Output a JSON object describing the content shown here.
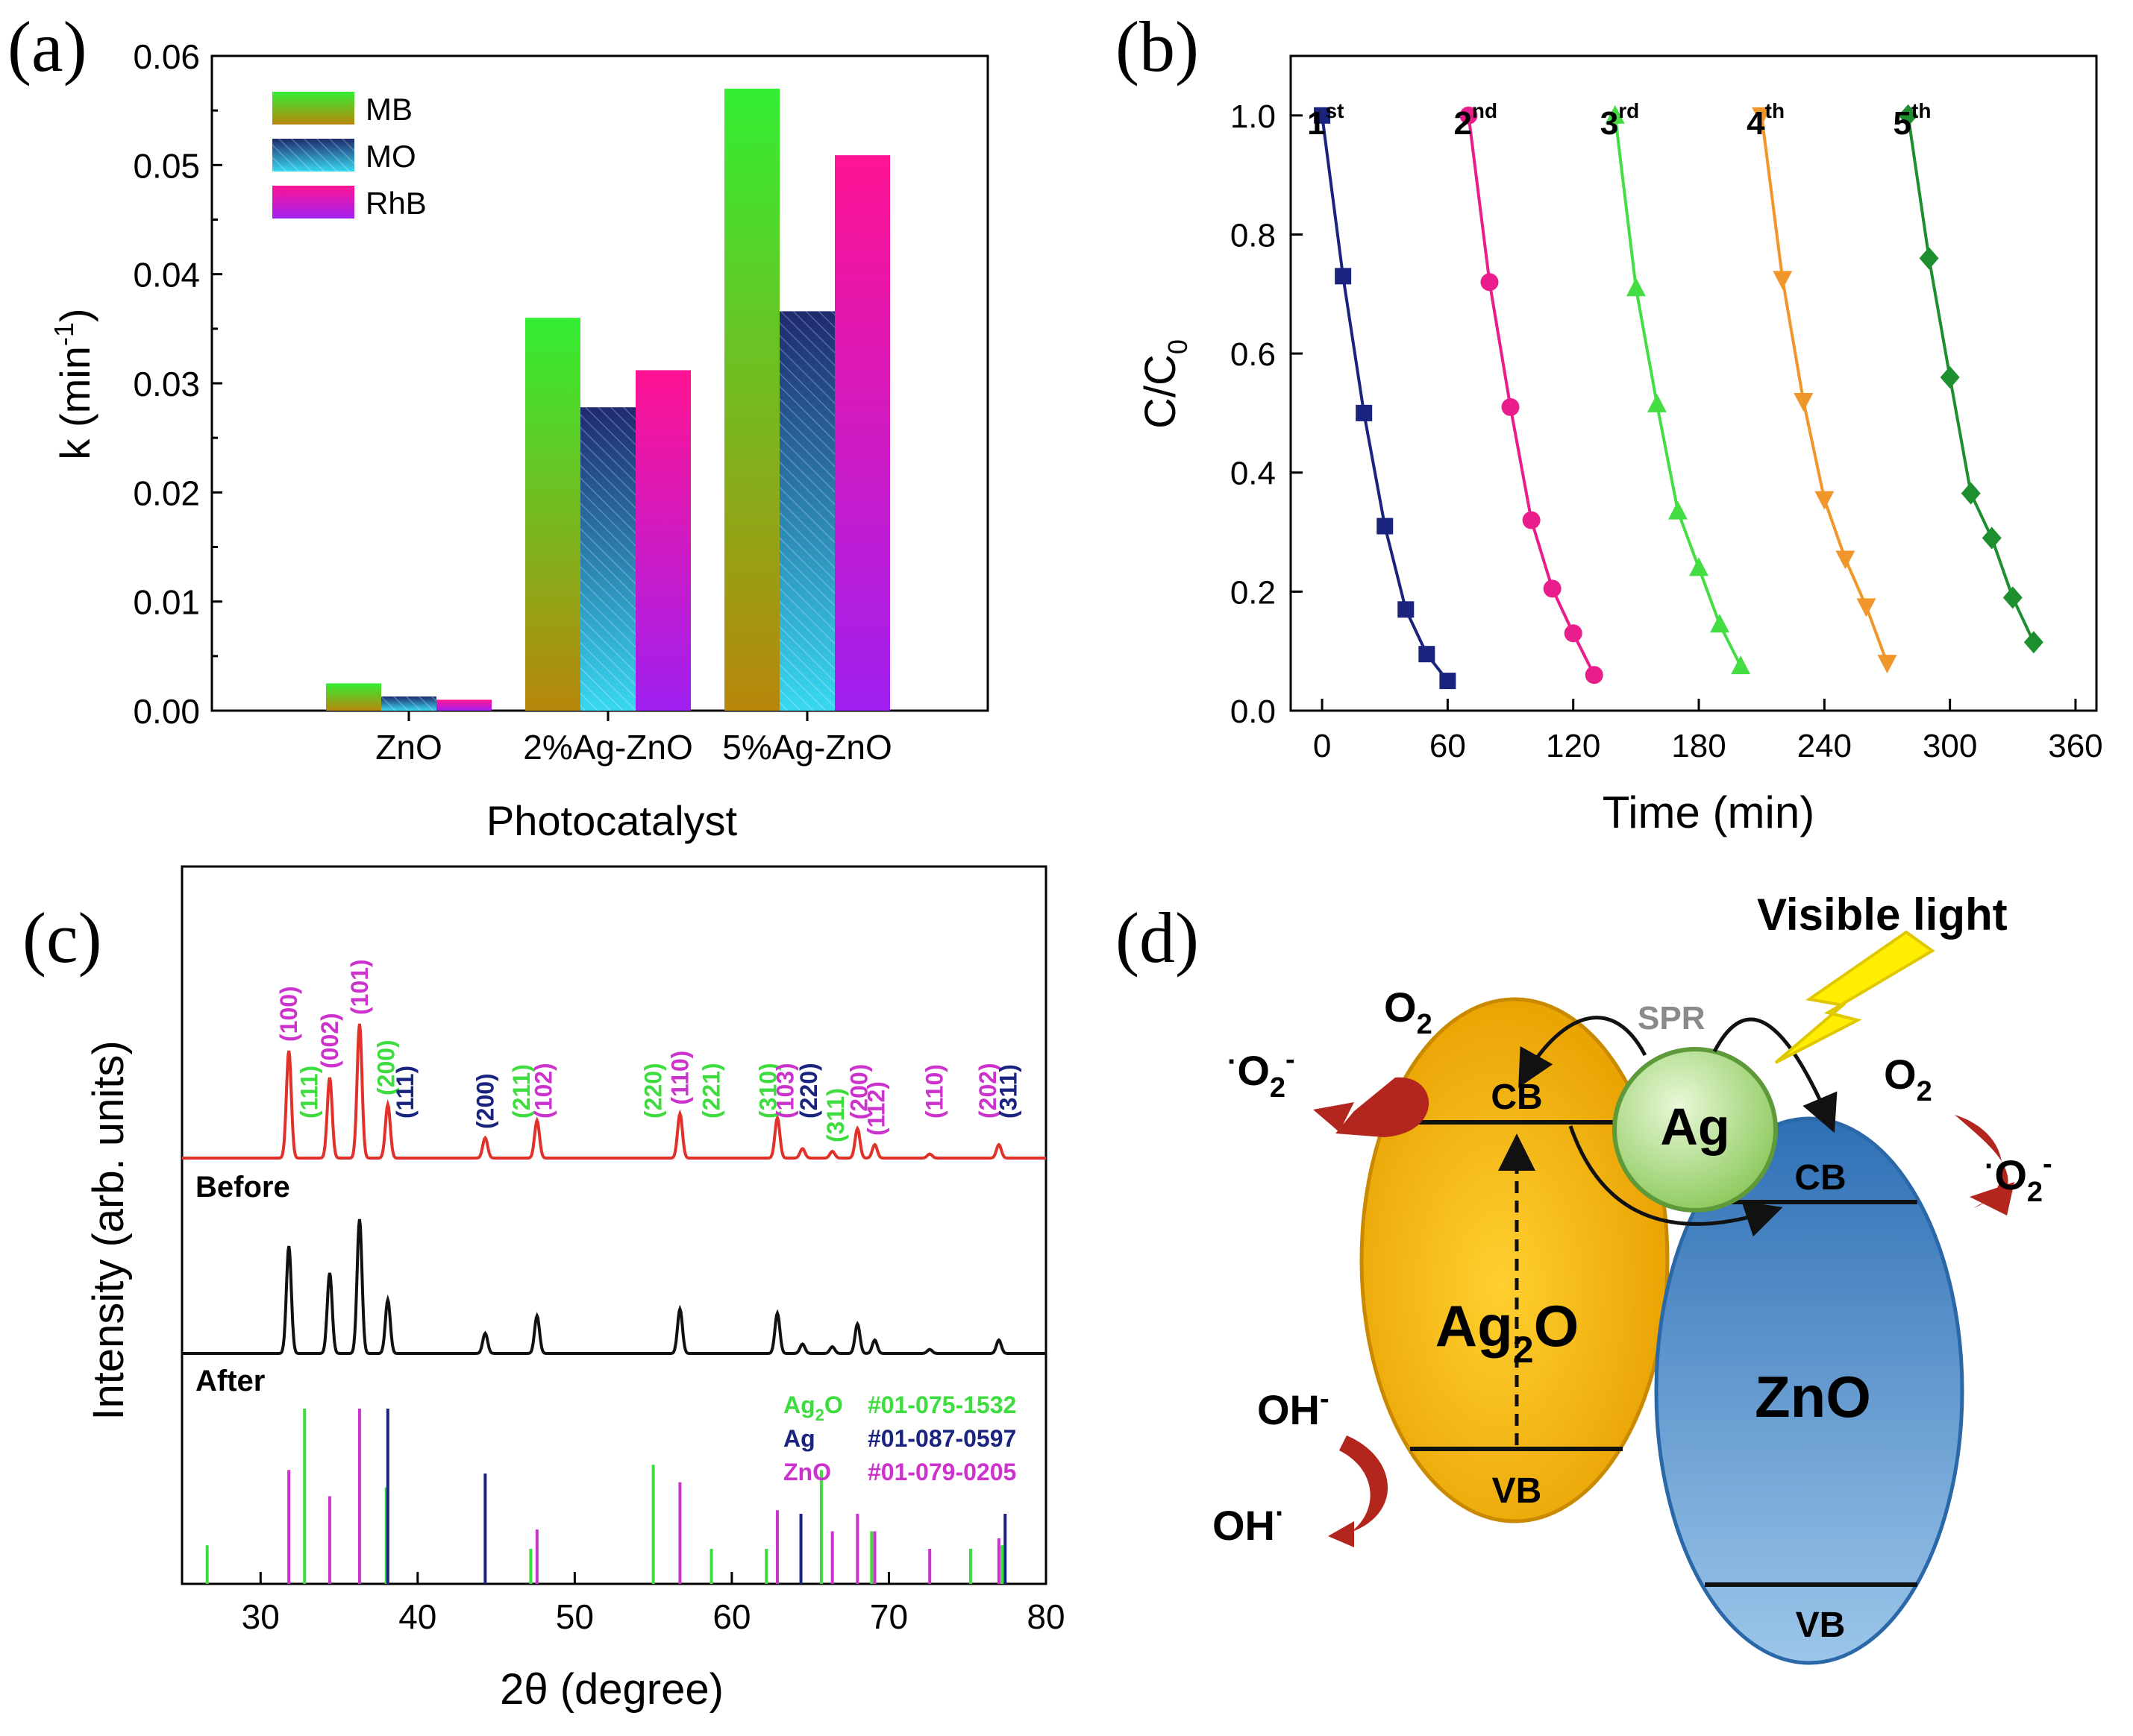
{
  "panels": {
    "a": "(a)",
    "b": "(b)",
    "c": "(c)",
    "d": "(d)"
  },
  "chart_data": [
    {
      "type": "bar",
      "panel": "a",
      "title": "",
      "xlabel": "Photocatalyst",
      "ylabel": "k (min",
      "ylabel_sup": "-1",
      "ylabel_close": ")",
      "categories": [
        "ZnO",
        "2%Ag-ZnO",
        "5%Ag-ZnO"
      ],
      "series": [
        {
          "name": "MB",
          "values": [
            0.0025,
            0.036,
            0.057
          ],
          "colors": [
            "#33ee33",
            "#b8860b"
          ]
        },
        {
          "name": "MO",
          "values": [
            0.0013,
            0.0278,
            0.0366
          ],
          "colors": [
            "#1f2a6e",
            "#38d8f0"
          ]
        },
        {
          "name": "RhB",
          "values": [
            0.001,
            0.0312,
            0.0509
          ],
          "colors": [
            "#ff1493",
            "#a020f0"
          ]
        }
      ],
      "ylim": [
        0,
        0.06
      ],
      "yticks": [
        "0.00",
        "0.01",
        "0.02",
        "0.03",
        "0.04",
        "0.05",
        "0.06"
      ],
      "legend_position": "top-left"
    },
    {
      "type": "line",
      "panel": "b",
      "xlabel": "Time (min)",
      "ylabel": "C/C",
      "ylabel_sub": "0",
      "xlim": [
        -15,
        370
      ],
      "ylim": [
        0,
        1.1
      ],
      "xticks": [
        "0",
        "60",
        "120",
        "180",
        "240",
        "300",
        "360"
      ],
      "yticks": [
        "0.0",
        "0.2",
        "0.4",
        "0.6",
        "0.8",
        "1.0"
      ],
      "series": [
        {
          "name": "1",
          "sup": "st",
          "color": "#1a237e",
          "marker": "square",
          "x": [
            0,
            10,
            20,
            30,
            40,
            50,
            60
          ],
          "y": [
            1.0,
            0.73,
            0.5,
            0.31,
            0.17,
            0.095,
            0.05
          ]
        },
        {
          "name": "2",
          "sup": "nd",
          "color": "#e91e8c",
          "marker": "circle",
          "x": [
            70,
            80,
            90,
            100,
            110,
            120,
            130
          ],
          "y": [
            1.0,
            0.72,
            0.51,
            0.32,
            0.205,
            0.13,
            0.06
          ]
        },
        {
          "name": "3",
          "sup": "rd",
          "color": "#44dd44",
          "marker": "triangle-up",
          "x": [
            140,
            150,
            160,
            170,
            180,
            190,
            200
          ],
          "y": [
            1.0,
            0.71,
            0.515,
            0.335,
            0.24,
            0.145,
            0.075
          ]
        },
        {
          "name": "4",
          "sup": "th",
          "color": "#f0962a",
          "marker": "triangle-down",
          "x": [
            210,
            220,
            230,
            240,
            250,
            260,
            270
          ],
          "y": [
            1.0,
            0.725,
            0.52,
            0.355,
            0.255,
            0.175,
            0.08
          ]
        },
        {
          "name": "5",
          "sup": "th",
          "color": "#1e8f2e",
          "marker": "diamond",
          "x": [
            280,
            290,
            300,
            310,
            320,
            330,
            340
          ],
          "y": [
            1.0,
            0.76,
            0.56,
            0.365,
            0.29,
            0.19,
            0.115
          ]
        }
      ]
    },
    {
      "type": "line",
      "panel": "c",
      "xlabel": "2θ (degree)",
      "ylabel": "Intensity (arb. units)",
      "xlim": [
        25,
        80
      ],
      "xticks": [
        "30",
        "40",
        "50",
        "60",
        "70",
        "80"
      ],
      "labels": {
        "before": "Before",
        "after": "After"
      },
      "peaks": [
        {
          "x": 31.8,
          "h": 0.8
        },
        {
          "x": 34.4,
          "h": 0.6
        },
        {
          "x": 36.3,
          "h": 1.0
        },
        {
          "x": 38.1,
          "h": 0.4
        },
        {
          "x": 44.3,
          "h": 0.15
        },
        {
          "x": 47.6,
          "h": 0.28
        },
        {
          "x": 56.7,
          "h": 0.33
        },
        {
          "x": 62.9,
          "h": 0.3
        },
        {
          "x": 64.5,
          "h": 0.07
        },
        {
          "x": 66.4,
          "h": 0.05
        },
        {
          "x": 68.0,
          "h": 0.22
        },
        {
          "x": 69.1,
          "h": 0.1
        },
        {
          "x": 72.6,
          "h": 0.03
        },
        {
          "x": 77.0,
          "h": 0.1
        }
      ],
      "hkl": [
        {
          "text": "(100)",
          "x": 31.8,
          "group": "ZnO"
        },
        {
          "text": "(111)",
          "x": 33.1,
          "group": "Ag2O"
        },
        {
          "text": "(002)",
          "x": 34.4,
          "group": "ZnO"
        },
        {
          "text": "(101)",
          "x": 36.3,
          "group": "ZnO"
        },
        {
          "text": "(200)",
          "x": 38.0,
          "group": "Ag2O"
        },
        {
          "text": "(111)",
          "x": 39.2,
          "group": "Ag"
        },
        {
          "text": "(200)",
          "x": 44.3,
          "group": "Ag"
        },
        {
          "text": "(211)",
          "x": 46.6,
          "group": "Ag2O"
        },
        {
          "text": "(102)",
          "x": 48.0,
          "group": "ZnO"
        },
        {
          "text": "(220)",
          "x": 55.0,
          "group": "Ag2O"
        },
        {
          "text": "(110)",
          "x": 56.7,
          "group": "ZnO"
        },
        {
          "text": "(221)",
          "x": 58.7,
          "group": "Ag2O"
        },
        {
          "text": "(310)",
          "x": 62.3,
          "group": "Ag2O"
        },
        {
          "text": "(103)",
          "x": 63.4,
          "group": "ZnO"
        },
        {
          "text": "(220)",
          "x": 64.9,
          "group": "Ag"
        },
        {
          "text": "(311)",
          "x": 66.6,
          "group": "Ag2O"
        },
        {
          "text": "(200)",
          "x": 68.1,
          "group": "ZnO"
        },
        {
          "text": "(112)",
          "x": 69.2,
          "group": "ZnO"
        },
        {
          "text": "(110)",
          "x": 72.9,
          "group": "ZnO"
        },
        {
          "text": "(202)",
          "x": 76.3,
          "group": "ZnO"
        },
        {
          "text": "(311)",
          "x": 77.6,
          "group": "Ag"
        }
      ],
      "reference_sticks": [
        {
          "group": "Ag2O",
          "sticks": [
            [
              26.6,
              0.22
            ],
            [
              32.8,
              1.0
            ],
            [
              38.0,
              0.55
            ],
            [
              47.2,
              0.2
            ],
            [
              55.0,
              0.68
            ],
            [
              58.7,
              0.2
            ],
            [
              62.2,
              0.2
            ],
            [
              65.7,
              0.65
            ],
            [
              68.9,
              0.3
            ],
            [
              75.2,
              0.2
            ],
            [
              77.2,
              0.22
            ]
          ]
        },
        {
          "group": "Ag",
          "sticks": [
            [
              38.1,
              1.0
            ],
            [
              44.3,
              0.63
            ],
            [
              64.4,
              0.4
            ],
            [
              77.4,
              0.4
            ]
          ]
        },
        {
          "group": "ZnO",
          "sticks": [
            [
              31.8,
              0.65
            ],
            [
              34.4,
              0.5
            ],
            [
              36.3,
              1.0
            ],
            [
              47.6,
              0.31
            ],
            [
              56.7,
              0.58
            ],
            [
              62.9,
              0.42
            ],
            [
              66.4,
              0.3
            ],
            [
              68.0,
              0.4
            ],
            [
              69.1,
              0.3
            ],
            [
              72.6,
              0.2
            ],
            [
              77.0,
              0.26
            ]
          ]
        }
      ],
      "legend": [
        {
          "group": "Ag2O",
          "formula": "Ag",
          "sub": "2",
          "name_rest": "O",
          "code": "#01-075-1532"
        },
        {
          "group": "Ag",
          "formula": "Ag",
          "sub": "",
          "name_rest": "",
          "code": "#01-087-0597"
        },
        {
          "group": "ZnO",
          "formula": "ZnO",
          "sub": "",
          "name_rest": "",
          "code": "#01-079-0205"
        }
      ],
      "group_colors": {
        "Ag2O": "#3fdc3f",
        "Ag": "#1a237e",
        "ZnO": "#cc33cc"
      }
    }
  ],
  "diagram": {
    "visible_light": "Visible light",
    "spr": "SPR",
    "ag": "Ag",
    "ag2o": {
      "main": "Ag",
      "sub": "2",
      "rest": "O"
    },
    "zno": "ZnO",
    "cb": "CB",
    "vb": "VB",
    "o2": {
      "main": "O",
      "sub": "2"
    },
    "o2_radical": {
      "dot": "·",
      "main": "O",
      "sub": "2",
      "sup": "-"
    },
    "oh_minus": {
      "main": "OH",
      "sup": "-"
    },
    "oh_radical": {
      "main": "OH",
      "sup": "·"
    },
    "colors": {
      "ag2o": "#f2a900",
      "zno": "#3a86c8",
      "ag": "#9bd36a",
      "arrow": "#b3261e",
      "bolt": "#ffee00"
    }
  }
}
